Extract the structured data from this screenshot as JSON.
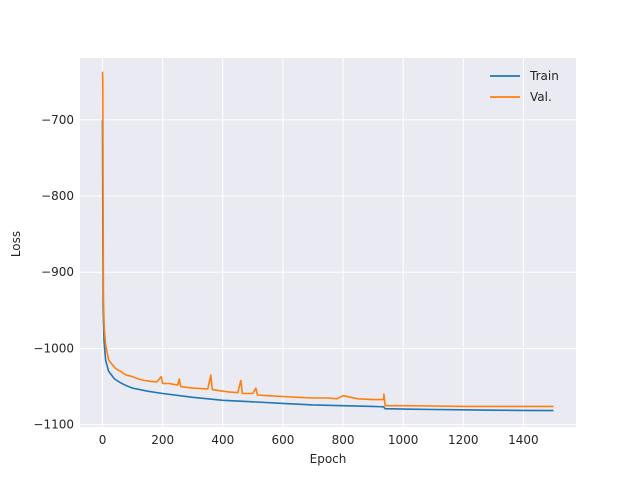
{
  "chart_data": {
    "type": "line",
    "title": "",
    "xlabel": "Epoch",
    "ylabel": "Loss",
    "xlim": [
      -75,
      1575
    ],
    "ylim": [
      -1103,
      -619
    ],
    "xticks": [
      0,
      200,
      400,
      600,
      800,
      1000,
      1200,
      1400
    ],
    "xtick_labels": [
      "0",
      "200",
      "400",
      "600",
      "800",
      "1000",
      "1200",
      "1400"
    ],
    "yticks": [
      -1100,
      -1000,
      -900,
      -800,
      -700
    ],
    "ytick_labels": [
      "−1100",
      "−1000",
      "−900",
      "−800",
      "−700"
    ],
    "grid": true,
    "legend_position": "top-right",
    "series": [
      {
        "name": "Train",
        "color": "#1f77b4",
        "x": [
          0,
          2,
          5,
          10,
          20,
          40,
          60,
          80,
          100,
          150,
          200,
          300,
          400,
          500,
          600,
          700,
          800,
          900,
          935,
          940,
          1000,
          1100,
          1200,
          1300,
          1400,
          1500
        ],
        "y": [
          -700,
          -945,
          -990,
          -1015,
          -1030,
          -1040,
          -1045,
          -1049,
          -1052,
          -1056,
          -1059,
          -1064,
          -1068,
          -1070,
          -1072,
          -1074,
          -1075,
          -1076,
          -1076.5,
          -1079,
          -1079.5,
          -1080,
          -1080.5,
          -1081,
          -1081.2,
          -1081.5
        ]
      },
      {
        "name": "Val.",
        "color": "#ff7f0e",
        "x": [
          0,
          1,
          2,
          3,
          4,
          6,
          8,
          10,
          15,
          20,
          30,
          40,
          50,
          60,
          70,
          80,
          90,
          100,
          120,
          140,
          160,
          180,
          195,
          200,
          220,
          250,
          255,
          260,
          300,
          350,
          360,
          365,
          400,
          420,
          450,
          460,
          465,
          500,
          510,
          515,
          550,
          600,
          650,
          700,
          750,
          780,
          800,
          850,
          900,
          935,
          936,
          940,
          1000,
          1100,
          1200,
          1300,
          1400,
          1500
        ],
        "y": [
          -637,
          -650,
          -800,
          -925,
          -950,
          -975,
          -985,
          -995,
          -1005,
          -1015,
          -1020,
          -1025,
          -1028,
          -1030,
          -1033,
          -1035,
          -1036,
          -1037,
          -1040,
          -1042,
          -1043,
          -1044,
          -1037,
          -1046,
          -1046,
          -1048,
          -1040,
          -1050,
          -1052,
          -1053,
          -1035,
          -1054,
          -1056,
          -1057,
          -1058,
          -1042,
          -1059,
          -1059,
          -1052,
          -1061,
          -1062,
          -1063,
          -1064,
          -1065,
          -1065,
          -1066,
          -1062,
          -1066,
          -1067,
          -1067,
          -1060,
          -1075,
          -1075,
          -1075.5,
          -1076,
          -1076,
          -1076,
          -1076
        ]
      }
    ]
  }
}
